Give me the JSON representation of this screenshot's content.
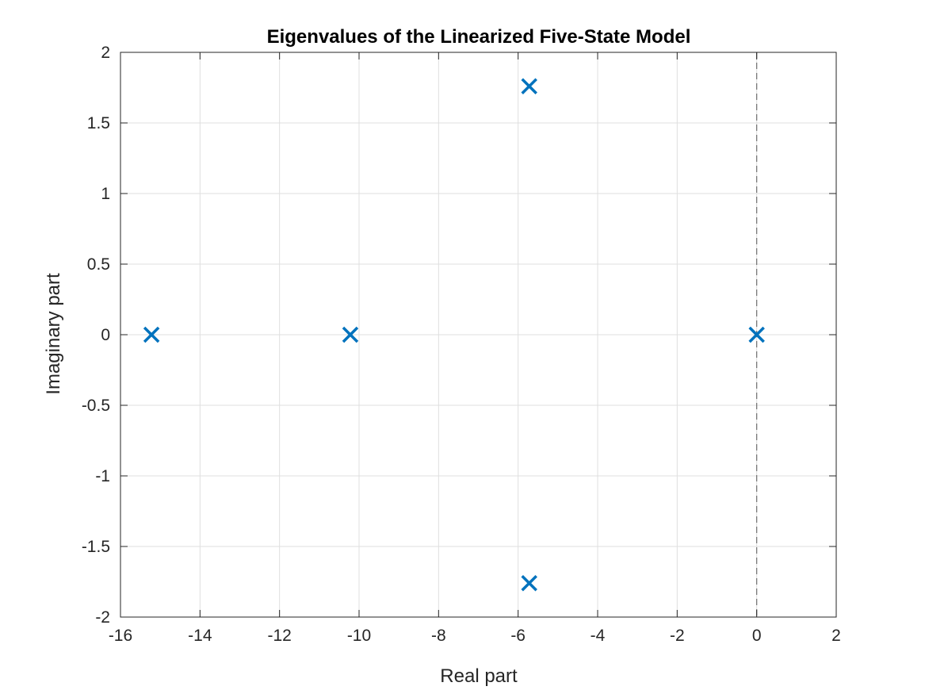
{
  "chart_data": {
    "type": "scatter",
    "title": "Eigenvalues of the Linearized Five-State Model",
    "xlabel": "Real part",
    "ylabel": "Imaginary part",
    "xlim": [
      -16,
      2
    ],
    "ylim": [
      -2,
      2
    ],
    "xticks": [
      -16,
      -14,
      -12,
      -10,
      -8,
      -6,
      -4,
      -2,
      0,
      2
    ],
    "yticks": [
      -2,
      -1.5,
      -1,
      -0.5,
      0,
      0.5,
      1,
      1.5,
      2
    ],
    "grid": true,
    "marker": "x",
    "marker_color": "#0072BD",
    "reference_line": {
      "orientation": "vertical",
      "x": 0,
      "style": "dashed",
      "color": "#707070"
    },
    "series": [
      {
        "points": [
          {
            "x": -15.22,
            "y": 0
          },
          {
            "x": -10.22,
            "y": 0
          },
          {
            "x": -5.72,
            "y": 1.76
          },
          {
            "x": -5.72,
            "y": -1.76
          },
          {
            "x": 0,
            "y": 0
          }
        ]
      }
    ]
  }
}
